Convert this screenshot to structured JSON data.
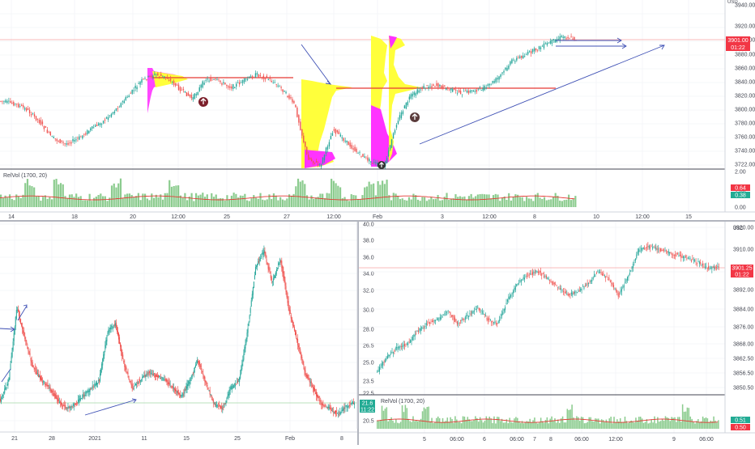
{
  "colors": {
    "up": "#26a69a",
    "down": "#ef5350",
    "volume": "#66bb6a",
    "vol_ma": "#e53935",
    "vp_yellow": "#ffff3b",
    "vp_magenta": "#ff33ff",
    "arrow": "#3f51b5",
    "poc": "#e53935",
    "grid": "#d1d4dc",
    "price_label": "#f23645",
    "rel_green": "#22ab94"
  },
  "top_panel": {
    "axis_unit": "USD",
    "y_ticks": [
      "3940.00",
      "3920.00",
      "3900.00",
      "3880.00",
      "3860.00",
      "3840.00",
      "3820.00",
      "3800.00",
      "3780.00",
      "3760.00",
      "3740.00",
      "3722.00"
    ],
    "price_badge": "3901.00",
    "timer_badge": "01:22",
    "indicator_label": "RelVol (1700, 20)",
    "indicator_ticks": [
      "2.00",
      "1.00",
      "0.00"
    ],
    "indicator_badge_red": "0.64",
    "indicator_badge_green": "0.38",
    "x_ticks": [
      "14",
      "18",
      "20",
      "12:00",
      "25",
      "27",
      "12:00",
      "Feb",
      "3",
      "12:00",
      "8",
      "10",
      "12:00",
      "15"
    ]
  },
  "bottom_left_panel": {
    "y_ticks": [
      "40.0",
      "38.0",
      "36.0",
      "34.0",
      "32.0",
      "30.0",
      "28.0",
      "26.5",
      "25.0",
      "23.5",
      "22.5",
      "20.5"
    ],
    "price_badge": "21.6",
    "timer_badge": "11:22",
    "x_ticks": [
      "21",
      "28",
      "2021",
      "11",
      "15",
      "25",
      "Feb",
      "8"
    ]
  },
  "bottom_right_panel": {
    "axis_unit": "USD",
    "y_ticks": [
      "3920.00",
      "3910.00",
      "3900.00",
      "3892.00",
      "3884.00",
      "3876.00",
      "3868.00",
      "3862.50",
      "3856.50",
      "3850.50"
    ],
    "price_badge": "3901.25",
    "timer_badge": "01:22",
    "indicator_label": "RelVol (1700, 20)",
    "indicator_badge_green": "0.51",
    "indicator_badge_red": "0.50",
    "x_ticks": [
      "5",
      "06:00",
      "6",
      "06:00",
      "7",
      "8",
      "06:00",
      "12:00",
      "9",
      "06:00"
    ]
  }
}
